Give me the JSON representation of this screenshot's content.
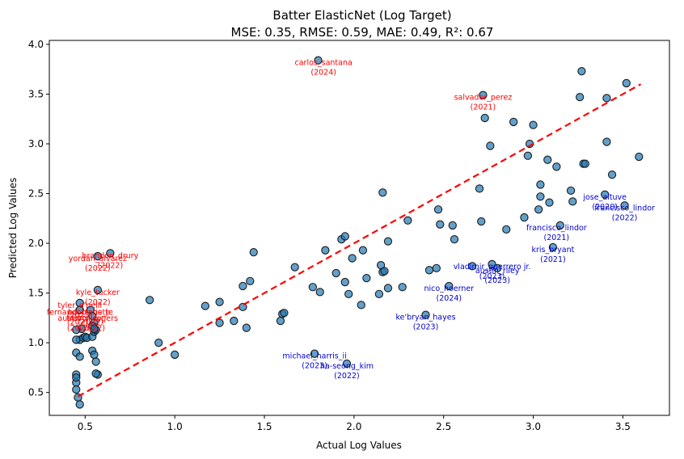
{
  "chart_data": {
    "type": "scatter",
    "title": "Batter ElasticNet (Log Target)",
    "subtitle": "MSE: 0.35, RMSE: 0.59, MAE: 0.49, R²: 0.67",
    "xlabel": "Actual Log Values",
    "ylabel": "Predicted Log Values",
    "xlim": [
      0.3,
      3.76
    ],
    "ylim": [
      0.27,
      4.04
    ],
    "xticks": [
      "0.5",
      "1.0",
      "1.5",
      "2.0",
      "2.5",
      "3.0",
      "3.5"
    ],
    "xtick_values": [
      0.5,
      1.0,
      1.5,
      2.0,
      2.5,
      3.0,
      3.5
    ],
    "yticks": [
      "0.5",
      "1.0",
      "1.5",
      "2.0",
      "2.5",
      "3.0",
      "3.5",
      "4.0"
    ],
    "ytick_values": [
      0.5,
      1.0,
      1.5,
      2.0,
      2.5,
      3.0,
      3.5,
      4.0
    ],
    "grid": false,
    "colors": {
      "points": "#1f77b4",
      "reference_line": "#ff0000",
      "over_label": "#ff0000",
      "under_label": "#0000cd"
    },
    "reference_line": {
      "name": "perfect prediction",
      "style": "dashed",
      "from": [
        0.46,
        0.46
      ],
      "to": [
        3.6,
        3.6
      ]
    },
    "points": [
      [
        0.57,
        1.87
      ],
      [
        0.64,
        1.9
      ],
      [
        0.57,
        1.53
      ],
      [
        0.47,
        1.4
      ],
      [
        0.47,
        1.33
      ],
      [
        0.53,
        1.33
      ],
      [
        0.54,
        1.27
      ],
      [
        0.55,
        1.2
      ],
      [
        0.54,
        1.17
      ],
      [
        0.48,
        1.14
      ],
      [
        0.45,
        1.13
      ],
      [
        0.47,
        1.03
      ],
      [
        0.49,
        1.05
      ],
      [
        0.5,
        1.06
      ],
      [
        0.45,
        1.03
      ],
      [
        0.51,
        1.05
      ],
      [
        0.54,
        1.06
      ],
      [
        0.55,
        1.11
      ],
      [
        0.56,
        1.13
      ],
      [
        0.45,
        0.9
      ],
      [
        0.54,
        0.92
      ],
      [
        0.55,
        0.88
      ],
      [
        0.56,
        0.81
      ],
      [
        0.55,
        1.14
      ],
      [
        0.47,
        0.86
      ],
      [
        0.57,
        0.68
      ],
      [
        0.45,
        0.68
      ],
      [
        0.45,
        0.6
      ],
      [
        0.45,
        0.53
      ],
      [
        0.46,
        0.45
      ],
      [
        0.47,
        0.38
      ],
      [
        0.45,
        0.65
      ],
      [
        0.56,
        0.69
      ],
      [
        0.86,
        1.43
      ],
      [
        0.91,
        1.0
      ],
      [
        1.0,
        0.88
      ],
      [
        1.17,
        1.37
      ],
      [
        1.25,
        1.41
      ],
      [
        1.25,
        1.2
      ],
      [
        1.33,
        1.22
      ],
      [
        1.38,
        1.57
      ],
      [
        1.38,
        1.36
      ],
      [
        1.42,
        1.62
      ],
      [
        1.4,
        1.15
      ],
      [
        1.44,
        1.91
      ],
      [
        1.59,
        1.22
      ],
      [
        1.6,
        1.29
      ],
      [
        1.61,
        1.3
      ],
      [
        1.67,
        1.76
      ],
      [
        1.77,
        1.56
      ],
      [
        1.81,
        1.51
      ],
      [
        1.84,
        1.93
      ],
      [
        1.9,
        1.7
      ],
      [
        1.93,
        2.04
      ],
      [
        1.95,
        2.07
      ],
      [
        1.95,
        1.61
      ],
      [
        1.97,
        1.49
      ],
      [
        1.99,
        1.85
      ],
      [
        2.04,
        1.38
      ],
      [
        2.05,
        1.93
      ],
      [
        2.07,
        1.65
      ],
      [
        2.14,
        1.49
      ],
      [
        2.15,
        1.78
      ],
      [
        2.16,
        1.71
      ],
      [
        2.17,
        1.72
      ],
      [
        2.16,
        2.51
      ],
      [
        2.19,
        2.02
      ],
      [
        2.19,
        1.55
      ],
      [
        2.27,
        1.56
      ],
      [
        2.3,
        2.23
      ],
      [
        2.4,
        1.28
      ],
      [
        2.42,
        1.73
      ],
      [
        2.47,
        2.34
      ],
      [
        2.48,
        2.19
      ],
      [
        2.46,
        1.75
      ],
      [
        2.53,
        1.57
      ],
      [
        2.55,
        2.18
      ],
      [
        2.56,
        2.04
      ],
      [
        2.66,
        1.77
      ],
      [
        2.7,
        2.55
      ],
      [
        2.71,
        2.22
      ],
      [
        2.72,
        3.49
      ],
      [
        2.73,
        3.26
      ],
      [
        2.76,
        2.98
      ],
      [
        2.77,
        1.79
      ],
      [
        2.8,
        1.75
      ],
      [
        2.85,
        2.14
      ],
      [
        2.89,
        3.22
      ],
      [
        2.95,
        2.26
      ],
      [
        2.97,
        2.88
      ],
      [
        2.98,
        3.0
      ],
      [
        3.0,
        3.19
      ],
      [
        3.04,
        2.59
      ],
      [
        3.04,
        2.47
      ],
      [
        3.03,
        2.34
      ],
      [
        3.08,
        2.84
      ],
      [
        3.09,
        2.41
      ],
      [
        3.13,
        2.77
      ],
      [
        3.11,
        1.96
      ],
      [
        3.15,
        2.18
      ],
      [
        3.21,
        2.53
      ],
      [
        3.22,
        2.42
      ],
      [
        3.26,
        3.47
      ],
      [
        3.27,
        3.73
      ],
      [
        3.28,
        2.8
      ],
      [
        3.29,
        2.8
      ],
      [
        3.4,
        2.49
      ],
      [
        3.41,
        3.02
      ],
      [
        3.41,
        3.46
      ],
      [
        3.44,
        2.69
      ],
      [
        3.51,
        2.38
      ],
      [
        3.52,
        3.61
      ],
      [
        3.59,
        2.87
      ],
      [
        1.8,
        3.84
      ],
      [
        1.78,
        0.89
      ],
      [
        1.96,
        0.79
      ]
    ],
    "annotations": [
      {
        "name": "carlos_santana",
        "year": "(2024)",
        "x": 1.83,
        "y": 3.84,
        "type": "over"
      },
      {
        "name": "salvador_perez",
        "year": "(2021)",
        "x": 2.72,
        "y": 3.49,
        "type": "over"
      },
      {
        "name": "brandon_drury",
        "year": "(2022)",
        "x": 0.64,
        "y": 1.9,
        "type": "over"
      },
      {
        "name": "yordan_alvarez",
        "year": "(2022)",
        "x": 0.57,
        "y": 1.87,
        "type": "over"
      },
      {
        "name": "kyle_tucker",
        "year": "(2022)",
        "x": 0.57,
        "y": 1.53,
        "type": "over"
      },
      {
        "name": "tyler_o'neill",
        "year": "(2021)",
        "x": 0.47,
        "y": 1.4,
        "type": "over"
      },
      {
        "name": "fernando_tatis_jr.",
        "year": "(2021)",
        "x": 0.47,
        "y": 1.33,
        "type": "over"
      },
      {
        "name": "bo_bichette",
        "year": "(2022)",
        "x": 0.53,
        "y": 1.33,
        "type": "over"
      },
      {
        "name": "austin_riley",
        "year": "(2021)",
        "x": 0.47,
        "y": 1.27,
        "type": "over"
      },
      {
        "name": "trevor_rogers",
        "year": "(2022)",
        "x": 0.54,
        "y": 1.27,
        "type": "over"
      },
      {
        "name": "jose_altuve",
        "year": "(2020)",
        "x": 3.4,
        "y": 2.49,
        "type": "under"
      },
      {
        "name": "francisco_lindor",
        "year": "(2022)",
        "x": 3.51,
        "y": 2.38,
        "type": "under"
      },
      {
        "name": "francisco_lindor",
        "year": "(2021)",
        "x": 3.13,
        "y": 2.18,
        "type": "under"
      },
      {
        "name": "kris_bryant",
        "year": "(2021)",
        "x": 3.11,
        "y": 1.96,
        "type": "under"
      },
      {
        "name": "vladimir_guerrero jr.",
        "year": "(2023)",
        "x": 2.77,
        "y": 1.79,
        "type": "under"
      },
      {
        "name": "austin_riley",
        "year": "(2023)",
        "x": 2.8,
        "y": 1.75,
        "type": "under"
      },
      {
        "name": "nico_hoerner",
        "year": "(2024)",
        "x": 2.53,
        "y": 1.57,
        "type": "under"
      },
      {
        "name": "ke'bryan_hayes",
        "year": "(2023)",
        "x": 2.4,
        "y": 1.28,
        "type": "under"
      },
      {
        "name": "michael_harris_ii",
        "year": "(2023)",
        "x": 1.78,
        "y": 0.89,
        "type": "under"
      },
      {
        "name": "ha-seong_kim",
        "year": "(2022)",
        "x": 1.96,
        "y": 0.79,
        "type": "under"
      }
    ]
  }
}
